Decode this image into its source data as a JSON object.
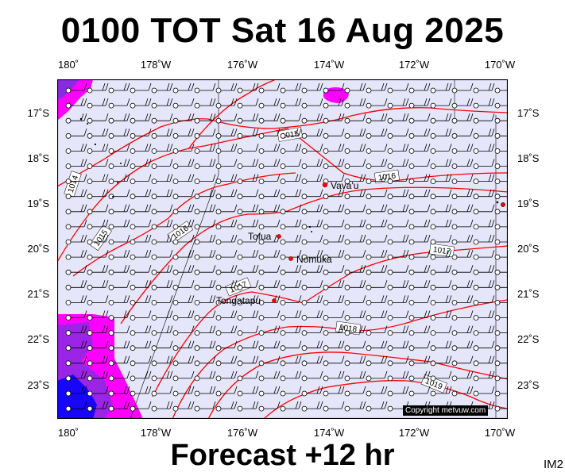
{
  "title": "0100 TOT Sat 16 Aug 2025",
  "subtitle": "Forecast +12 hr",
  "image_code": "IM2",
  "copyright": "Copyright metvuw.com",
  "lon_labels": [
    "180˚",
    "178˚W",
    "176˚W",
    "174˚W",
    "172˚W",
    "170˚W"
  ],
  "lat_labels": [
    "17˚S",
    "18˚S",
    "19˚S",
    "20˚S",
    "21˚S",
    "22˚S",
    "23˚S"
  ],
  "places": [
    {
      "name": "Vava'u",
      "lon": -174.0,
      "lat": -18.65
    },
    {
      "name": "Tofua",
      "lon": -175.05,
      "lat": -19.75
    },
    {
      "name": "Nomuka",
      "lon": -174.8,
      "lat": -20.25
    },
    {
      "name": "Tongatapu",
      "lon": -175.2,
      "lat": -21.15
    }
  ],
  "isobar_labels": [
    "1014",
    "1015",
    "1015",
    "1016",
    "1016",
    "1017",
    "1017",
    "1018",
    "1019"
  ],
  "colors": {
    "ocean": "#e6e6fa",
    "isobar": "#ff0000",
    "precip_heavy": "#ff00ff",
    "precip_moderate": "#8a2be2",
    "precip_intense": "#0000ff"
  }
}
